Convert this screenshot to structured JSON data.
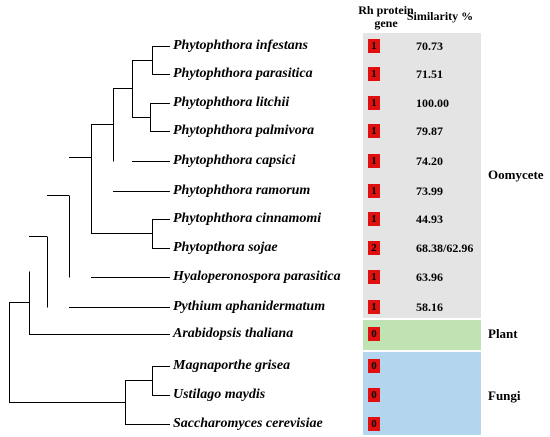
{
  "headers": {
    "gene_line1": "Rh protein",
    "gene_line2": "gene",
    "similarity": "Similarity %"
  },
  "colors": {
    "oomycete_bg": "#e4e4e4",
    "plant_bg": "#bfe3b2",
    "fungi_bg": "#b3d6ee",
    "badge": "#e01010",
    "tree_line": "#000000"
  },
  "groups": [
    {
      "key": "oomycete",
      "label": "Oomycete"
    },
    {
      "key": "plant",
      "label": "Plant"
    },
    {
      "key": "fungi",
      "label": "Fungi"
    }
  ],
  "rows": [
    {
      "taxon": "Phytophthora infestans",
      "genes": "1",
      "similarity": "70.73",
      "group": "oomycete"
    },
    {
      "taxon": "Phytophthora parasitica",
      "genes": "1",
      "similarity": "71.51",
      "group": "oomycete"
    },
    {
      "taxon": "Phytophthora litchii",
      "genes": "1",
      "similarity": "100.00",
      "group": "oomycete"
    },
    {
      "taxon": "Phytophthora palmivora",
      "genes": "1",
      "similarity": "79.87",
      "group": "oomycete"
    },
    {
      "taxon": "Phytophthora capsici",
      "genes": "1",
      "similarity": "74.20",
      "group": "oomycete"
    },
    {
      "taxon": "Phytophthora ramorum",
      "genes": "1",
      "similarity": "73.99",
      "group": "oomycete"
    },
    {
      "taxon": "Phytophthora cinnamomi",
      "genes": "1",
      "similarity": "44.93",
      "group": "oomycete"
    },
    {
      "taxon": "Phytopthora sojae",
      "genes": "2",
      "similarity": "68.38/62.96",
      "group": "oomycete"
    },
    {
      "taxon": "Hyaloperonospora parasitica",
      "genes": "1",
      "similarity": "63.96",
      "group": "oomycete"
    },
    {
      "taxon": "Pythium aphanidermatum",
      "genes": "1",
      "similarity": "58.16",
      "group": "oomycete"
    },
    {
      "taxon": "Arabidopsis thaliana",
      "genes": "0",
      "similarity": "",
      "group": "plant"
    },
    {
      "taxon": "Magnaporthe grisea",
      "genes": "0",
      "similarity": "",
      "group": "fungi"
    },
    {
      "taxon": "Ustilago maydis",
      "genes": "0",
      "similarity": "",
      "group": "fungi"
    },
    {
      "taxon": "Saccharomyces cerevisiae",
      "genes": "0",
      "similarity": "",
      "group": "fungi"
    }
  ]
}
